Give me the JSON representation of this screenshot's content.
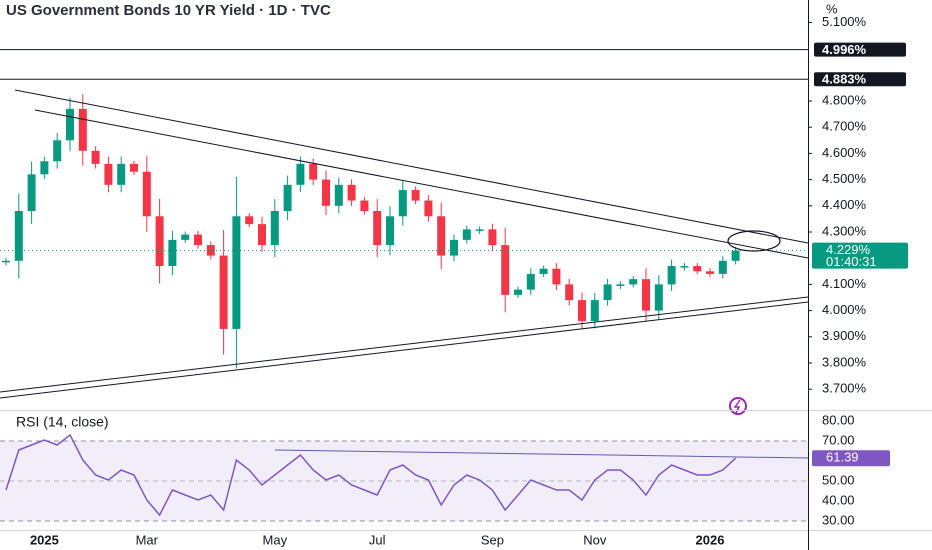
{
  "chart_data": {
    "type": "candlestick",
    "title": "US Government Bonds 10 YR Yield · 1D · TVC",
    "axis_unit": "%",
    "categories": [
      null,
      null,
      null,
      "2025",
      null,
      null,
      null,
      null,
      null,
      null,
      null,
      "Mar",
      null,
      null,
      null,
      null,
      null,
      null,
      null,
      null,
      null,
      "May",
      null,
      null,
      null,
      null,
      null,
      null,
      null,
      "Jul",
      null,
      null,
      null,
      null,
      null,
      null,
      null,
      null,
      "Sep",
      null,
      null,
      null,
      null,
      null,
      null,
      null,
      "Nov",
      null,
      null,
      null,
      null,
      null,
      null,
      null,
      null,
      "2026",
      null,
      null
    ],
    "values": [
      4.19,
      4.38,
      4.52,
      4.57,
      4.65,
      4.77,
      4.61,
      4.56,
      4.48,
      4.56,
      4.53,
      4.36,
      4.17,
      4.27,
      4.29,
      4.25,
      4.21,
      3.93,
      4.36,
      4.33,
      4.25,
      4.38,
      4.48,
      4.56,
      4.5,
      4.4,
      4.48,
      4.42,
      4.38,
      4.25,
      4.36,
      4.46,
      4.42,
      4.36,
      4.21,
      4.27,
      4.31,
      4.31,
      4.25,
      4.06,
      4.08,
      4.14,
      4.16,
      4.1,
      4.04,
      3.96,
      4.04,
      4.1,
      4.1,
      4.12,
      4.0,
      4.1,
      4.17,
      4.17,
      4.15,
      4.14,
      4.19,
      4.229
    ],
    "up_color": "#089981",
    "down_color": "#f23645",
    "ylim": [
      3.6206,
      5.1855
    ],
    "yticks": [
      {
        "value": 5.1,
        "label": "5.100%"
      },
      {
        "value": 4.8,
        "label": "4.800%"
      },
      {
        "value": 4.7,
        "label": "4.700%"
      },
      {
        "value": 4.6,
        "label": "4.600%"
      },
      {
        "value": 4.5,
        "label": "4.500%"
      },
      {
        "value": 4.4,
        "label": "4.400%"
      },
      {
        "value": 4.3,
        "label": "4.300%"
      },
      {
        "value": 4.1,
        "label": "4.100%"
      },
      {
        "value": 4.0,
        "label": "4.000%"
      },
      {
        "value": 3.9,
        "label": "3.900%"
      },
      {
        "value": 3.8,
        "label": "3.800%"
      },
      {
        "value": 3.7,
        "label": "3.700%"
      }
    ],
    "levels": [
      {
        "value": 4.996,
        "label": "4.996%"
      },
      {
        "value": 4.883,
        "label": "4.883%"
      }
    ],
    "last_price": {
      "value": 4.229,
      "label": "4.229%"
    },
    "countdown": "01:40:31",
    "rsi": {
      "title": "RSI (14, close)",
      "color": "#7e57c2",
      "values": [
        45.5,
        65.5,
        68,
        70.5,
        68,
        73,
        60.5,
        53,
        50.5,
        55.5,
        53,
        40.5,
        33,
        45.5,
        43,
        40.5,
        43,
        35.5,
        60.5,
        55.5,
        48,
        53,
        58,
        63,
        55.5,
        50.5,
        53,
        48,
        45.5,
        43,
        55.5,
        58,
        53,
        50.5,
        38,
        48,
        53,
        50.5,
        45.5,
        35.5,
        43,
        50.5,
        48,
        45.5,
        45.5,
        40.5,
        50.5,
        55.5,
        55.5,
        50.5,
        43,
        53,
        58,
        55.5,
        53,
        53,
        55.5,
        61.39
      ],
      "ylim": [
        25.5,
        85.5
      ],
      "yticks": [
        {
          "value": 80,
          "label": "80.00"
        },
        {
          "value": 70,
          "label": "70.00"
        },
        {
          "value": 50,
          "label": "50.00"
        },
        {
          "value": 40,
          "label": "40.00"
        },
        {
          "value": 30,
          "label": "30.00"
        }
      ]
    }
  }
}
